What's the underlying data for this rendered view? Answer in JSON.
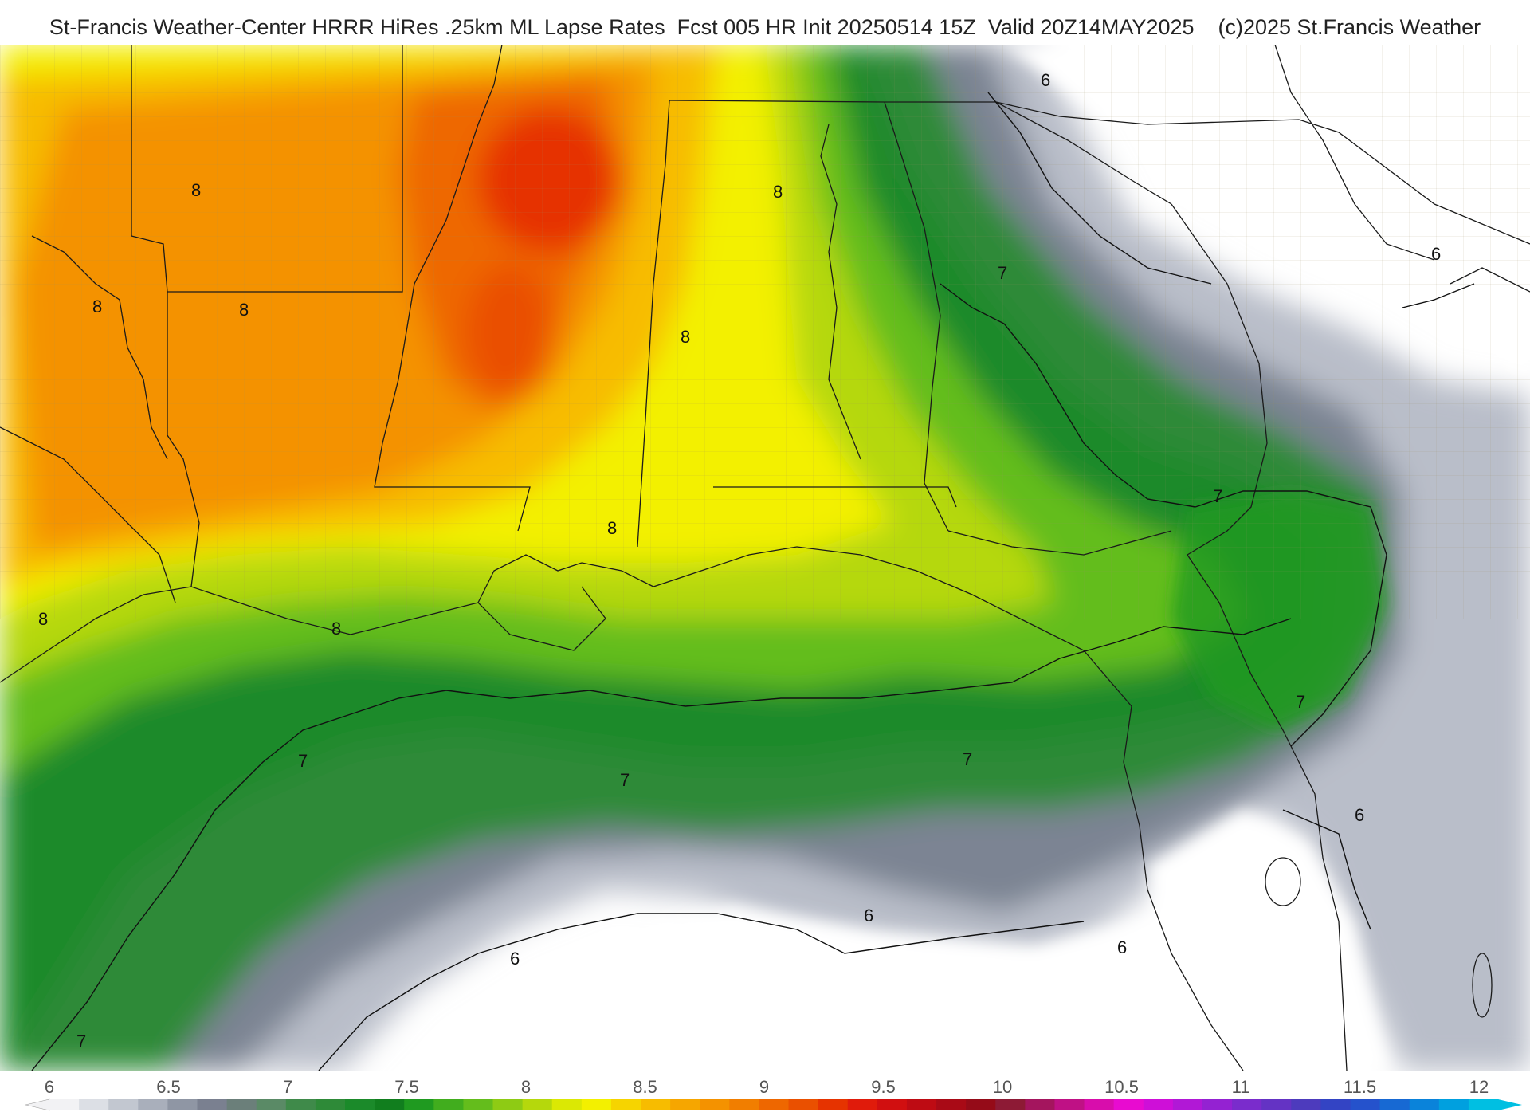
{
  "title": "St-Francis Weather-Center HRRR HiRes .25km ML Lapse Rates  Fcst 005 HR Init 20250514 15Z  Valid 20Z14MAY2025    (c)2025 St.Francis Weather",
  "contour_labels": [
    "8",
    "8",
    "8",
    "8",
    "8",
    "8",
    "8",
    "8",
    "7",
    "7",
    "7",
    "7",
    "7",
    "7",
    "7",
    "6",
    "6",
    "6",
    "6",
    "6",
    "6",
    "7"
  ],
  "colorbar": {
    "ticks": [
      "6",
      "6.5",
      "7",
      "7.5",
      "8",
      "8.5",
      "9",
      "9.5",
      "10",
      "10.5",
      "11",
      "11.5",
      "12"
    ],
    "colors": [
      "#f2f2f4",
      "#dcdfe5",
      "#c2c7d0",
      "#a9afbb",
      "#8f96a4",
      "#7a8090",
      "#6b7f7a",
      "#5a8a66",
      "#3f8a4a",
      "#2e8a38",
      "#1b8a2a",
      "#117e1e",
      "#1f9a20",
      "#41ad1e",
      "#64bd1c",
      "#8ecb14",
      "#b5d80c",
      "#dbe804",
      "#f3f000",
      "#f6d400",
      "#f7bc00",
      "#f6a600",
      "#f49200",
      "#f17e00",
      "#ee6700",
      "#ea5000",
      "#e63300",
      "#e01b0b",
      "#d10f10",
      "#be0b13",
      "#a90a16",
      "#950b18",
      "#8d1a35",
      "#a4155e",
      "#bf1185",
      "#d80dac",
      "#e80bd0",
      "#ce0fd8",
      "#b118d6",
      "#9422d2",
      "#7a2ccc",
      "#6433c4",
      "#4d3bbd",
      "#3344c4",
      "#2552cc",
      "#1769d3",
      "#0a83da",
      "#00a0df",
      "#00bfe2"
    ]
  }
}
